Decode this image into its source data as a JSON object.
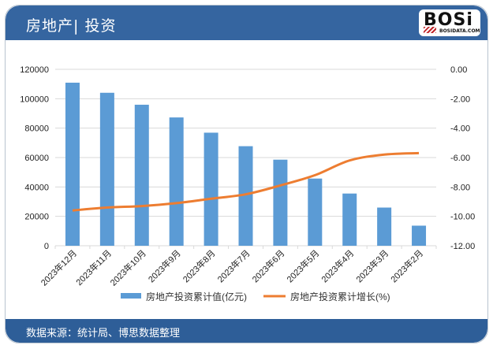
{
  "header": {
    "title": "房地产| 投资",
    "logo_text": "BOSi",
    "logo_sub": "BOSIDATA.COM"
  },
  "footer": {
    "source": "数据来源：统计局、博思数据整理"
  },
  "colors": {
    "header_bg": "#3565a0",
    "bar": "#5b9bd5",
    "line": "#ed7d31",
    "grid": "#d9d9d9"
  },
  "chart_data": {
    "type": "bar+line",
    "title": "房地产| 投资",
    "categories": [
      "2023年12月",
      "2023年11月",
      "2023年10月",
      "2023年9月",
      "2023年8月",
      "2023年7月",
      "2023年6月",
      "2023年5月",
      "2023年4月",
      "2023年3月",
      "2023年2月"
    ],
    "series": [
      {
        "name": "房地产投资累计值(亿元)",
        "type": "bar",
        "axis": "left",
        "values": [
          110913,
          104045,
          95922,
          87269,
          76900,
          67717,
          58550,
          45701,
          35514,
          25974,
          13669
        ]
      },
      {
        "name": "房地产投资累计增长(%)",
        "type": "line",
        "axis": "right",
        "values": [
          -9.6,
          -9.4,
          -9.3,
          -9.1,
          -8.8,
          -8.5,
          -7.9,
          -7.2,
          -6.2,
          -5.8,
          -5.7
        ]
      }
    ],
    "left_axis": {
      "min": 0,
      "max": 120000,
      "ticks": [
        "0",
        "20000",
        "40000",
        "60000",
        "80000",
        "100000",
        "120000"
      ]
    },
    "right_axis": {
      "min": -12,
      "max": 0,
      "ticks": [
        "-12.00",
        "-10.00",
        "-8.00",
        "-6.00",
        "-4.00",
        "-2.00",
        "0.00"
      ]
    },
    "grid": true,
    "legend_position": "bottom",
    "legend": [
      "房地产投资累计值(亿元)",
      "房地产投资累计增长(%)"
    ]
  }
}
